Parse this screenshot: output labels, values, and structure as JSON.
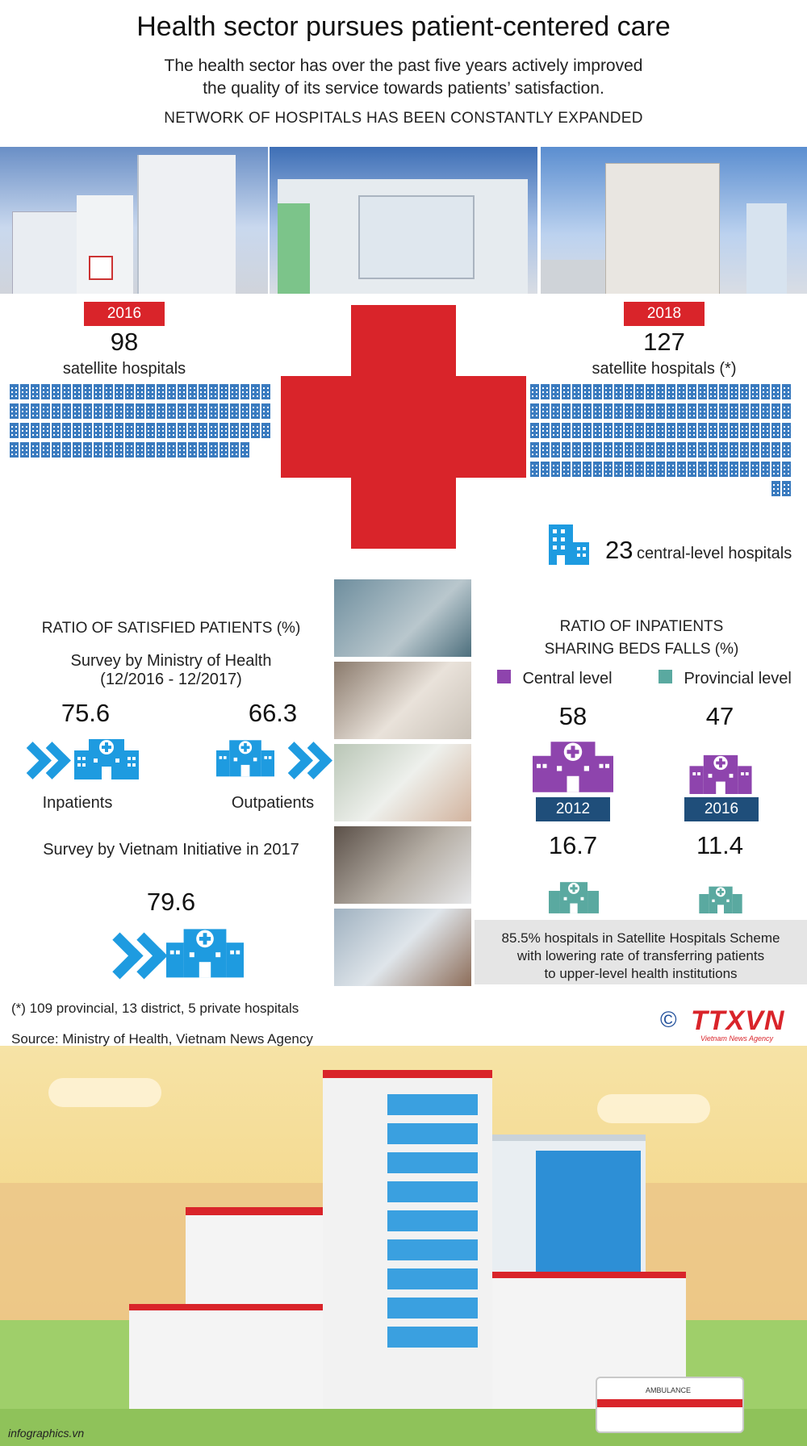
{
  "header": {
    "title": "Health sector pursues patient-centered care",
    "subtitle_line1": "The health sector has over the past five years actively improved",
    "subtitle_line2": "the quality of its service towards patients’ satisfaction.",
    "section1": "NETWORK OF HOSPITALS HAS BEEN CONSTANTLY EXPANDED"
  },
  "network": {
    "left": {
      "year": "2016",
      "value": "98",
      "label": "satellite hospitals"
    },
    "right": {
      "year": "2018",
      "value": "127",
      "label": "satellite hospitals (*)"
    },
    "central": {
      "value": "23",
      "label": "central-level hospitals"
    }
  },
  "satisfied": {
    "heading": "RATIO OF SATISFIED PATIENTS (%)",
    "survey1_line1": "Survey by Ministry of Health",
    "survey1_line2": "(12/2016 - 12/2017)",
    "inpatients_value": "75.6",
    "inpatients_label": "Inpatients",
    "outpatients_value": "66.3",
    "outpatients_label": "Outpatients",
    "survey2": "Survey by Vietnam Initiative in 2017",
    "survey2_value": "79.6"
  },
  "beds": {
    "heading_line1": "RATIO OF INPATIENTS",
    "heading_line2": "SHARING BEDS FALLS (%)",
    "legend_central": "Central level",
    "legend_provincial": "Provincial level",
    "central_2012": "58",
    "central_2016": "47",
    "year_2012": "2012",
    "year_2016": "2016",
    "provincial_2012": "16.7",
    "provincial_2016": "11.4",
    "note_line1": "85.5% hospitals in Satellite Hospitals Scheme",
    "note_line2": "with lowering rate of transferring patients",
    "note_line3": "to upper-level health institutions"
  },
  "footer": {
    "footnote": "(*) 109 provincial, 13 district, 5 private hospitals",
    "source": "Source: Ministry of Health, Vietnam News Agency",
    "logo": "TTXVN",
    "logo_sub": "Vietnam News Agency",
    "copyright": "©",
    "site": "infographics.vn",
    "ambulance": "AMBULANCE"
  },
  "colors": {
    "red": "#d9242a",
    "blue_icon": "#3a7bbf",
    "purple": "#8e44ad",
    "teal": "#5aa9a0",
    "navy": "#1f4e7a",
    "chevron": "#1e9be0"
  },
  "chart_data": [
    {
      "type": "table",
      "title": "satellite hospitals",
      "categories": [
        "2016",
        "2018"
      ],
      "values": [
        98,
        127
      ]
    },
    {
      "type": "bar",
      "title": "RATIO OF SATISFIED PATIENTS (%)",
      "categories": [
        "Inpatients",
        "Outpatients",
        "Survey by Vietnam Initiative in 2017"
      ],
      "values": [
        75.6,
        66.3,
        79.6
      ]
    },
    {
      "type": "bar",
      "title": "RATIO OF INPATIENTS SHARING BEDS FALLS (%)",
      "categories": [
        "2012",
        "2016"
      ],
      "series": [
        {
          "name": "Central level",
          "values": [
            58,
            47
          ]
        },
        {
          "name": "Provincial level",
          "values": [
            16.7,
            11.4
          ]
        }
      ]
    }
  ]
}
